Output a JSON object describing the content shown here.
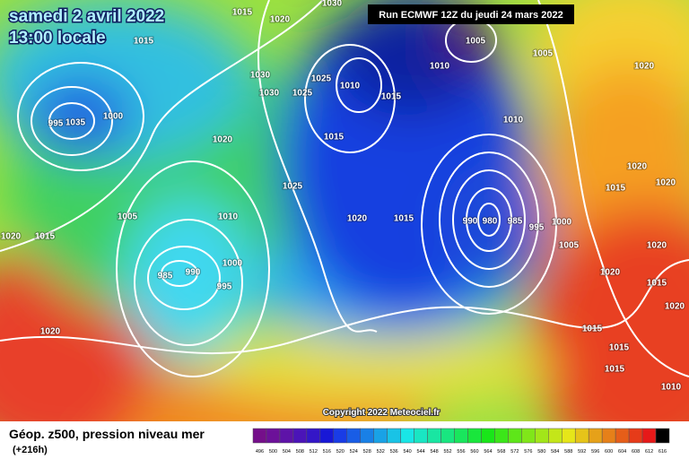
{
  "header": {
    "date": "samedi 2 avril 2022",
    "time": "13:00 locale",
    "run": "Run ECMWF 12Z du jeudi 24 mars 2022",
    "copyright": "Copyright 2022 Meteociel.fr"
  },
  "footer": {
    "title": "Géop. z500, pression niveau mer",
    "lead": "(+216h)"
  },
  "legend": {
    "ticks": [
      496,
      500,
      504,
      508,
      512,
      516,
      520,
      524,
      528,
      532,
      536,
      540,
      544,
      548,
      552,
      556,
      560,
      564,
      568,
      572,
      576,
      580,
      584,
      588,
      592,
      596,
      600,
      604,
      608,
      612,
      616
    ]
  },
  "isobar_labels": [
    "1015",
    "1020",
    "1030",
    "1005",
    "1005",
    "1015",
    "1010",
    "1030",
    "1030",
    "1025",
    "1025",
    "1010",
    "1015",
    "995",
    "1035",
    "1000",
    "1020",
    "1015",
    "1010",
    "1020",
    "1020",
    "1015",
    "1020",
    "1025",
    "1005",
    "1010",
    "1020",
    "1015",
    "990",
    "980",
    "985",
    "995",
    "1000",
    "1005",
    "1020",
    "1015",
    "1020",
    "985",
    "990",
    "1000",
    "995",
    "1020",
    "1015",
    "1020",
    "1020",
    "1015",
    "1015",
    "1015",
    "1010"
  ]
}
